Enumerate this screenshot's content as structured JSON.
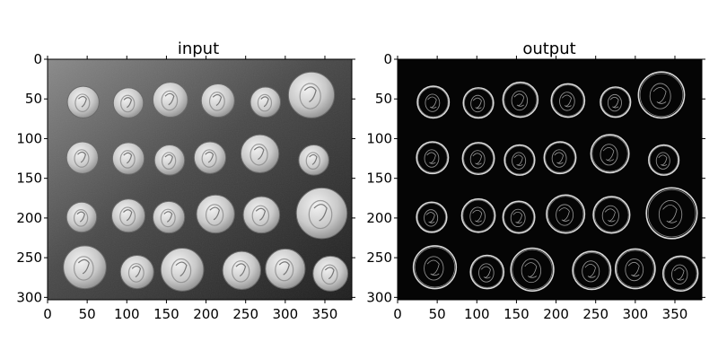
{
  "chart_data": [
    {
      "type": "image",
      "title": "input",
      "image": "grayscale photograph of coins",
      "render": "photo",
      "xlim": [
        0,
        384
      ],
      "ylim": [
        303,
        0
      ],
      "xticks": [
        0,
        50,
        100,
        150,
        200,
        250,
        300,
        350
      ],
      "yticks": [
        0,
        50,
        100,
        150,
        200,
        250,
        300
      ],
      "colors": {
        "background": "#3a3a3a",
        "frame": "#000000"
      }
    },
    {
      "type": "image",
      "title": "output",
      "image": "edge map of coins",
      "render": "edges",
      "xlim": [
        0,
        384
      ],
      "ylim": [
        303,
        0
      ],
      "xticks": [
        0,
        50,
        100,
        150,
        200,
        250,
        300,
        350
      ],
      "yticks": [
        0,
        50,
        100,
        150,
        200,
        250,
        300
      ],
      "colors": {
        "background": "#050505",
        "frame": "#000000"
      }
    }
  ],
  "coins": [
    {
      "x": 45,
      "y": 54,
      "r": 20
    },
    {
      "x": 102,
      "y": 55,
      "r": 19
    },
    {
      "x": 155,
      "y": 51,
      "r": 22
    },
    {
      "x": 215,
      "y": 52,
      "r": 21
    },
    {
      "x": 275,
      "y": 54,
      "r": 19
    },
    {
      "x": 333,
      "y": 45,
      "r": 29
    },
    {
      "x": 44,
      "y": 124,
      "r": 20
    },
    {
      "x": 102,
      "y": 125,
      "r": 20
    },
    {
      "x": 154,
      "y": 127,
      "r": 19
    },
    {
      "x": 205,
      "y": 124,
      "r": 20
    },
    {
      "x": 268,
      "y": 119,
      "r": 24
    },
    {
      "x": 336,
      "y": 127,
      "r": 19
    },
    {
      "x": 43,
      "y": 199,
      "r": 19
    },
    {
      "x": 102,
      "y": 197,
      "r": 21
    },
    {
      "x": 153,
      "y": 199,
      "r": 20
    },
    {
      "x": 212,
      "y": 195,
      "r": 24
    },
    {
      "x": 270,
      "y": 196,
      "r": 23
    },
    {
      "x": 346,
      "y": 194,
      "r": 32
    },
    {
      "x": 47,
      "y": 262,
      "r": 27
    },
    {
      "x": 113,
      "y": 268,
      "r": 21
    },
    {
      "x": 170,
      "y": 265,
      "r": 27
    },
    {
      "x": 245,
      "y": 266,
      "r": 24
    },
    {
      "x": 300,
      "y": 264,
      "r": 25
    },
    {
      "x": 357,
      "y": 270,
      "r": 22
    }
  ]
}
